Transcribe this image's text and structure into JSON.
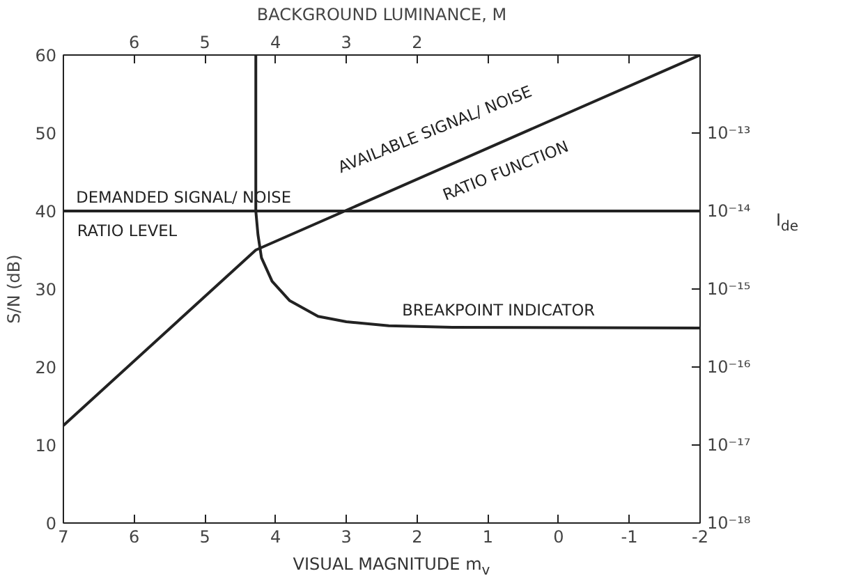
{
  "chart_data": {
    "type": "line",
    "xlabel": "VISUAL MAGNITUDE m$_{v}$",
    "ylabel": "S/N (dB)",
    "x2label": "BACKGROUND LUMINANCE, M",
    "y2label": "I$_{de}$",
    "xlim": [
      7,
      -2
    ],
    "xticks": [
      7,
      6,
      5,
      4,
      3,
      2,
      1,
      0,
      -1,
      -2
    ],
    "x2lim": [
      7,
      -2
    ],
    "x2ticks": [
      6,
      5,
      4,
      3,
      2,
      {
        "value": 1,
        "label": null
      },
      {
        "value": 0,
        "label": null
      },
      {
        "value": -1,
        "label": null
      }
    ],
    "ylim": [
      0,
      60
    ],
    "yticks": [
      0,
      10,
      20,
      30,
      40,
      50,
      60
    ],
    "log": "y2",
    "y2lim": [
      1e-18,
      1e-12
    ],
    "y2ticks": [
      {
        "value": 1e-18,
        "label": "10⁻¹⁸"
      },
      {
        "value": 1e-17,
        "label": "10⁻¹⁷"
      },
      {
        "value": 1e-16,
        "label": "10⁻¹⁶"
      },
      {
        "value": 1e-15,
        "label": "10⁻¹⁵"
      },
      {
        "value": 1e-14,
        "label": "10⁻¹⁴"
      },
      {
        "value": 1e-13,
        "label": "10⁻¹³"
      }
    ],
    "series": [
      {
        "color": "#222222",
        "x": [
          7,
          4.28,
          -2
        ],
        "values": [
          12.5,
          35,
          60
        ]
      },
      {
        "color": "#222222",
        "x": [
          7,
          -2
        ],
        "values": [
          40,
          40
        ]
      },
      {
        "color": "#222222",
        "x": [
          4.28,
          4.28,
          4.25,
          4.2,
          4.05,
          3.8,
          3.4,
          3.0,
          2.4,
          1.5,
          -2
        ],
        "values": [
          60,
          40,
          37,
          34,
          31,
          28.5,
          26.5,
          25.8,
          25.3,
          25.1,
          25
        ]
      }
    ],
    "annotations": [
      "DEMANDED SIGNAL/ NOISE",
      "RATIO LEVEL",
      "AVAILABLE SIGNAL/ NOISE",
      "RATIO FUNCTION",
      "BREAKPOINT INDICATOR"
    ],
    "grid": false,
    "marker": "none",
    "line_style": "solid"
  }
}
